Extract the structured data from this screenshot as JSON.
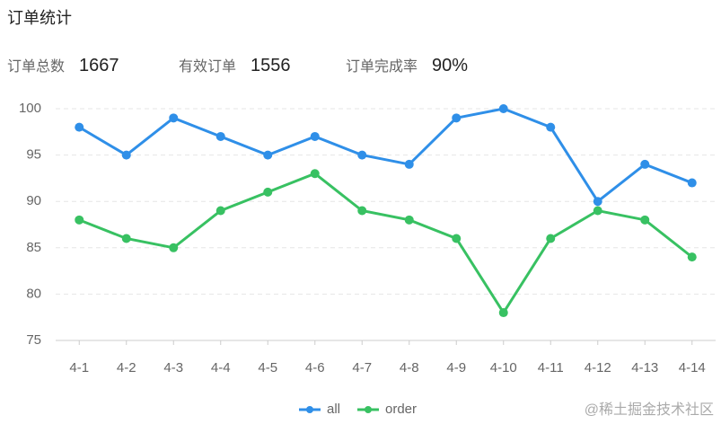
{
  "header": {
    "title": "订单统计"
  },
  "stats": [
    {
      "label": "订单总数",
      "value": 1667
    },
    {
      "label": "有效订单",
      "value": 1556
    },
    {
      "label": "订单完成率",
      "value": "90%"
    }
  ],
  "watermark": "@稀土掘金技术社区",
  "chart_data": {
    "type": "line",
    "categories": [
      "4-1",
      "4-2",
      "4-3",
      "4-4",
      "4-5",
      "4-6",
      "4-7",
      "4-8",
      "4-9",
      "4-10",
      "4-11",
      "4-12",
      "4-13",
      "4-14"
    ],
    "series": [
      {
        "name": "all",
        "color": "#2f8fe8",
        "values": [
          98,
          95,
          99,
          97,
          95,
          97,
          95,
          94,
          99,
          100,
          98,
          90,
          94,
          92
        ]
      },
      {
        "name": "order",
        "color": "#38c162",
        "values": [
          88,
          86,
          85,
          89,
          91,
          93,
          89,
          88,
          86,
          78,
          86,
          89,
          88,
          84
        ]
      }
    ],
    "ylim": [
      75,
      100
    ],
    "yticks": [
      75,
      80,
      85,
      90,
      95,
      100
    ],
    "grid": true,
    "legend": "bottom"
  }
}
